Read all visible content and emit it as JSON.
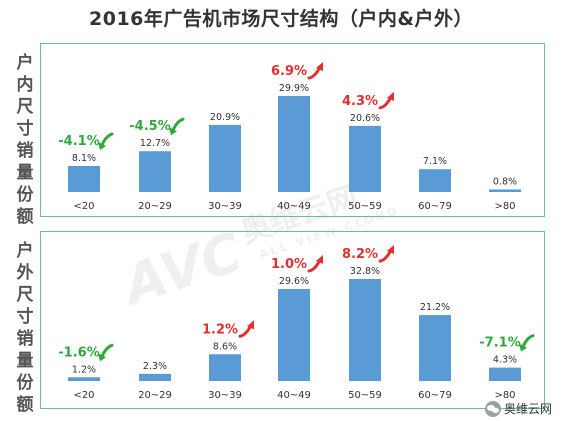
{
  "title": "2016年广告机市场尺寸结构（户内&户外）",
  "watermark": {
    "logo": "AVC",
    "brand": "奥维云网",
    "sub": "ALL VIEW CLOUD"
  },
  "footer": {
    "text": "奥维云网"
  },
  "colors": {
    "bar": "#5b9bd5",
    "up": "#e03030",
    "down": "#2eaa3a",
    "frame": "#5cc88a"
  },
  "chart_data": [
    {
      "type": "bar",
      "side_label": "户内尺寸销量份额",
      "categories": [
        "<20",
        "20~29",
        "30~39",
        "40~49",
        "50~59",
        "60~79",
        ">80"
      ],
      "values": [
        8.1,
        12.7,
        20.9,
        29.9,
        20.6,
        7.1,
        0.8
      ],
      "value_labels": [
        "8.1%",
        "12.7%",
        "20.9%",
        "29.9%",
        "20.6%",
        "7.1%",
        "0.8%"
      ],
      "changes": [
        {
          "category": "<20",
          "text": "-4.1%",
          "direction": "down"
        },
        {
          "category": "20~29",
          "text": "-4.5%",
          "direction": "down"
        },
        {
          "category": "40~49",
          "text": "6.9%",
          "direction": "up"
        },
        {
          "category": "50~59",
          "text": "4.3%",
          "direction": "up"
        }
      ],
      "ylim": [
        0,
        32
      ]
    },
    {
      "type": "bar",
      "side_label": "户外尺寸销量份额",
      "categories": [
        "<20",
        "20~29",
        "30~39",
        "40~49",
        "50~59",
        "60~79",
        ">80"
      ],
      "values": [
        1.2,
        2.3,
        8.6,
        29.6,
        32.8,
        21.2,
        4.3
      ],
      "value_labels": [
        "1.2%",
        "2.3%",
        "8.6%",
        "29.6%",
        "32.8%",
        "21.2%",
        "4.3%"
      ],
      "changes": [
        {
          "category": "<20",
          "text": "-1.6%",
          "direction": "down"
        },
        {
          "category": "30~39",
          "text": "1.2%",
          "direction": "up"
        },
        {
          "category": "40~49",
          "text": "1.0%",
          "direction": "up"
        },
        {
          "category": "50~59",
          "text": "8.2%",
          "direction": "up"
        },
        {
          "category": ">80",
          "text": "-7.1%",
          "direction": "down"
        }
      ],
      "ylim": [
        0,
        35
      ]
    }
  ]
}
